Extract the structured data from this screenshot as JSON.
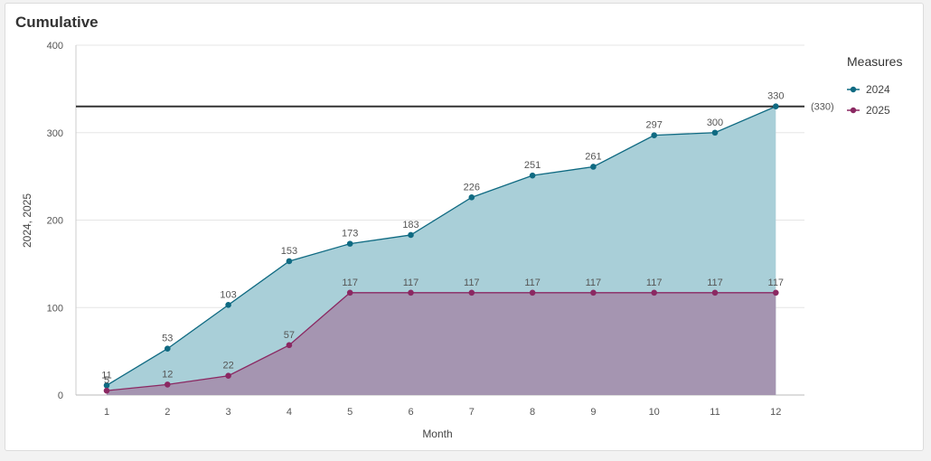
{
  "card": {
    "title": "Cumulative"
  },
  "chart_data": {
    "type": "area",
    "title": "Cumulative",
    "xlabel": "Month",
    "ylabel": "2024, 2025",
    "categories": [
      "1",
      "2",
      "3",
      "4",
      "5",
      "6",
      "7",
      "8",
      "9",
      "10",
      "11",
      "12"
    ],
    "ylim": [
      0,
      400
    ],
    "yticks": [
      0,
      100,
      200,
      300,
      400
    ],
    "grid": true,
    "series": [
      {
        "name": "2024",
        "color": "#0f6a82",
        "fill": "#a9cfd8",
        "values": [
          11,
          53,
          103,
          153,
          173,
          183,
          226,
          251,
          261,
          297,
          300,
          330
        ]
      },
      {
        "name": "2025",
        "color": "#8b2862",
        "fill": "#a595b1",
        "values": [
          5,
          12,
          22,
          57,
          117,
          117,
          117,
          117,
          117,
          117,
          117,
          117
        ]
      }
    ],
    "reference_line": {
      "value": 330,
      "label": "(330)",
      "color": "#333333"
    },
    "legend": {
      "title": "Measures",
      "position": "top-right"
    }
  }
}
